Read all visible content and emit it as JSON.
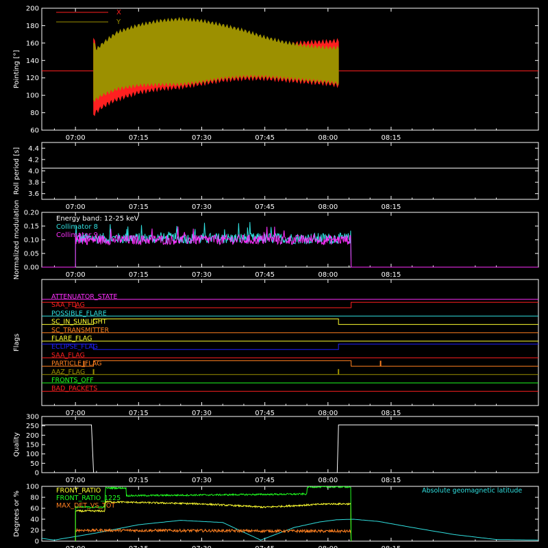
{
  "colors": {
    "background": "#000000",
    "axes": "#ffffff",
    "red": "#ff2020",
    "olive": "#9c9000",
    "cyan": "#30e0e0",
    "magenta": "#ff30ff",
    "yellow": "#ffff30",
    "orange": "#ff8020",
    "green": "#20ff20",
    "blue": "#2020ff"
  },
  "chart_data": [
    {
      "id": "pointing",
      "type": "line",
      "ylabel": "Pointing [°]",
      "ylim": [
        60,
        200
      ],
      "yticks": [
        60,
        80,
        100,
        120,
        140,
        160,
        180,
        200
      ],
      "xlim_min": [
        -8,
        110
      ],
      "xticks": [
        {
          "t": 0,
          "label": "07:00"
        },
        {
          "t": 15,
          "label": "07:15"
        },
        {
          "t": 30,
          "label": "07:30"
        },
        {
          "t": 45,
          "label": "07:45"
        },
        {
          "t": 60,
          "label": "08:00"
        },
        {
          "t": 75,
          "label": "08:15"
        }
      ],
      "series": [
        {
          "name": "X",
          "color": "#ff2020",
          "flat_value": 128,
          "active_range_min": [
            4.3,
            62.5
          ],
          "envelope_min": [
            4.3,
            5,
            6,
            8,
            10,
            15,
            20,
            25,
            30,
            35,
            40,
            45,
            50,
            55,
            60,
            62.5
          ],
          "upper": [
            165,
            152,
            148,
            150,
            154,
            160,
            163,
            163,
            160,
            158,
            157,
            157,
            158,
            160,
            161,
            162
          ],
          "lower": [
            78,
            82,
            86,
            92,
            96,
            104,
            108,
            110,
            114,
            118,
            120,
            120,
            118,
            116,
            114,
            112
          ]
        },
        {
          "name": "Y",
          "color": "#9c9000",
          "flat_value": 128,
          "active_range_min": [
            4.3,
            62.5
          ],
          "envelope_min": [
            4.3,
            5,
            6,
            8,
            10,
            15,
            20,
            25,
            30,
            35,
            40,
            45,
            50,
            55,
            60,
            62.5
          ],
          "upper": [
            160,
            152,
            157,
            165,
            172,
            180,
            185,
            187,
            185,
            180,
            174,
            166,
            160,
            156,
            154,
            154
          ],
          "lower": [
            95,
            96,
            100,
            104,
            108,
            112,
            113,
            113,
            116,
            120,
            122,
            122,
            120,
            118,
            116,
            114
          ]
        }
      ]
    },
    {
      "id": "roll",
      "type": "line",
      "ylabel": "Roll period [s]",
      "ylim": [
        3.5,
        4.5
      ],
      "yticks": [
        3.6,
        3.8,
        4.0,
        4.2,
        4.4
      ],
      "series": [
        {
          "name": "",
          "color": "#ffffff",
          "x_min": [
            -8,
            110
          ],
          "y": [
            4.05,
            4.05
          ]
        }
      ]
    },
    {
      "id": "modulation",
      "type": "line",
      "ylabel": "Normalized modulation",
      "ylim": [
        0,
        0.2
      ],
      "yticks": [
        0.0,
        0.05,
        0.1,
        0.15,
        0.2
      ],
      "annotations": [
        "Energy band: 12-25 keV"
      ],
      "series": [
        {
          "name": "Collimator 8",
          "color": "#30e0e0",
          "active_range_min": [
            0,
            65.5
          ],
          "mean": 0.105,
          "spread": 0.02
        },
        {
          "name": "Collimator 9",
          "color": "#ff30ff",
          "active_range_min": [
            0,
            65.5
          ],
          "mean": 0.1,
          "spread": 0.018
        }
      ]
    },
    {
      "id": "flags",
      "type": "line",
      "ylabel": "Flags",
      "series": [
        {
          "name": "ATTENUATOR_STATE",
          "color": "#ff30ff",
          "levels": [
            [
              -8,
              0
            ]
          ]
        },
        {
          "name": "SAA_FLAG",
          "color": "#ff2020",
          "levels": [
            [
              -8,
              1
            ],
            [
              0,
              0
            ],
            [
              65.5,
              1
            ]
          ]
        },
        {
          "name": "POSSIBLE_FLARE",
          "color": "#30e0e0",
          "levels": [
            [
              -8,
              0
            ]
          ]
        },
        {
          "name": "SC_IN_SUNLIGHT",
          "color": "#ffff30",
          "levels": [
            [
              -8,
              0
            ],
            [
              4.3,
              1
            ],
            [
              62.5,
              0
            ]
          ]
        },
        {
          "name": "SC_TRANSMITTER",
          "color": "#ff8020",
          "levels": [
            [
              -8,
              0
            ]
          ]
        },
        {
          "name": "FLARE_FLAG",
          "color": "#ffff30",
          "levels": [
            [
              -8,
              0
            ]
          ]
        },
        {
          "name": "ECLIPSE_FLAG",
          "color": "#2020ff",
          "levels": [
            [
              -8,
              1
            ],
            [
              4.3,
              0
            ],
            [
              62.5,
              1
            ]
          ]
        },
        {
          "name": "SAA_FLAG",
          "color": "#ff2020",
          "levels": [
            [
              -8,
              0
            ]
          ]
        },
        {
          "name": "PARTICLE_FLAG",
          "color": "#ff8020",
          "levels": [
            [
              -8,
              0
            ],
            [
              4.3,
              1
            ],
            [
              65.5,
              0
            ]
          ],
          "spikes_min": [
            2,
            72.5
          ]
        },
        {
          "name": "AAZ_FLAG",
          "color": "#9c9000",
          "levels": [
            [
              -8,
              0
            ]
          ],
          "spikes_min": [
            4.3,
            62.5
          ]
        },
        {
          "name": "FRONTS_OFF",
          "color": "#20ff20",
          "levels": [
            [
              -8,
              0
            ]
          ]
        },
        {
          "name": "BAD_PACKETS",
          "color": "#ff2020",
          "levels": [
            [
              -8,
              0
            ]
          ]
        }
      ]
    },
    {
      "id": "quality",
      "type": "line",
      "ylabel": "Quality",
      "ylim": [
        0,
        300
      ],
      "yticks": [
        0,
        50,
        100,
        150,
        200,
        250,
        300
      ],
      "series": [
        {
          "name": "",
          "color": "#ffffff",
          "x_min": [
            -8,
            3.8,
            4.3,
            62.2,
            62.5,
            110
          ],
          "y": [
            255,
            255,
            0,
            0,
            255,
            255
          ]
        }
      ]
    },
    {
      "id": "ratios",
      "type": "line",
      "ylabel": "Degrees or %",
      "ylim": [
        0,
        100
      ],
      "yticks": [
        0,
        20,
        40,
        60,
        80,
        100
      ],
      "annotations": [
        "Absolute geomagnetic latitude"
      ],
      "series": [
        {
          "name": "FRONT_RATIO",
          "color": "#ffff30",
          "x_min": [
            0,
            7,
            7.1,
            30,
            45,
            60,
            65.5
          ],
          "y": [
            55,
            55,
            72,
            68,
            62,
            68,
            68
          ],
          "spread": 3
        },
        {
          "name": "FRONT_RATIO_1225",
          "color": "#20ff20",
          "x_min": [
            0,
            7,
            7.1,
            12,
            12.1,
            55,
            55.1,
            65.5
          ],
          "y": [
            62,
            62,
            97,
            97,
            83,
            86,
            99,
            99
          ],
          "spread": 3
        },
        {
          "name": "MAX_DET_VS_TOT",
          "color": "#ff8020",
          "x_min": [
            0,
            65.5
          ],
          "y": [
            20,
            18
          ],
          "spread": 5
        },
        {
          "name": "Absolute geomagnetic latitude",
          "color": "#30e0e0",
          "x_min": [
            -8,
            -5,
            5,
            15,
            25,
            35,
            44,
            52,
            58,
            62,
            66,
            72,
            80,
            90,
            100,
            110
          ],
          "y": [
            5,
            2,
            15,
            30,
            38,
            34,
            2,
            25,
            35,
            39,
            40,
            36,
            25,
            12,
            3,
            2
          ]
        }
      ]
    }
  ]
}
